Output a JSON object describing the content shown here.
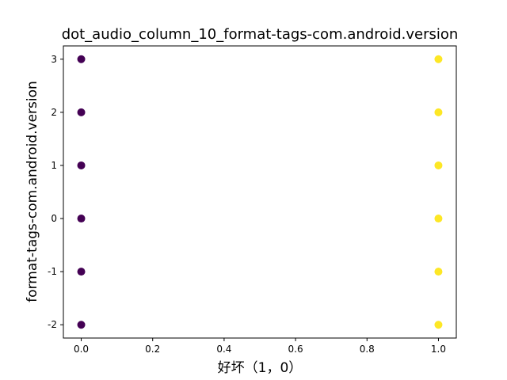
{
  "chart_data": {
    "type": "scatter",
    "title": "dot_audio_column_10_format-tags-com.android.version",
    "xlabel": "好坏（1，0）",
    "ylabel": "format-tags-com.android.version",
    "xlim": [
      -0.05,
      1.05
    ],
    "ylim": [
      -2.25,
      3.25
    ],
    "xticks": [
      0.0,
      0.2,
      0.4,
      0.6,
      0.8,
      1.0
    ],
    "xtick_labels": [
      "0.0",
      "0.2",
      "0.4",
      "0.6",
      "0.8",
      "1.0"
    ],
    "yticks": [
      -2,
      -1,
      0,
      1,
      2,
      3
    ],
    "ytick_labels": [
      "-2",
      "-1",
      "0",
      "1",
      "2",
      "3"
    ],
    "grid": false,
    "legend": "none",
    "series": [
      {
        "color": "#440154",
        "points": [
          {
            "x": 0,
            "y": 3
          },
          {
            "x": 0,
            "y": 2
          },
          {
            "x": 0,
            "y": 1
          },
          {
            "x": 0,
            "y": 0
          },
          {
            "x": 0,
            "y": -1
          },
          {
            "x": 0,
            "y": -2
          }
        ]
      },
      {
        "color": "#fde725",
        "points": [
          {
            "x": 1,
            "y": 3
          },
          {
            "x": 1,
            "y": 2
          },
          {
            "x": 1,
            "y": 1
          },
          {
            "x": 1,
            "y": 0
          },
          {
            "x": 1,
            "y": -1
          },
          {
            "x": 1,
            "y": -2
          }
        ]
      }
    ]
  }
}
